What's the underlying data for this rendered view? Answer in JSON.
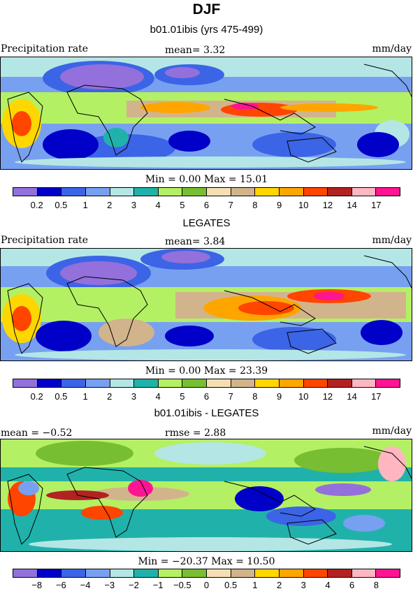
{
  "title": "DJF",
  "panels": [
    {
      "subtitle": "b01.01ibis (yrs 475-499)",
      "left_label": "Precipitation rate",
      "center_label": "mean=   3.32",
      "right_label": "mm/day",
      "stats": "Min =   0.00 Max =   15.01",
      "tick_labels": [
        "0.2",
        "0.5",
        "1",
        "2",
        "3",
        "4",
        "5",
        "6",
        "7",
        "8",
        "9",
        "10",
        "12",
        "14",
        "17"
      ],
      "palette": "abs"
    },
    {
      "subtitle": "LEGATES",
      "left_label": "Precipitation rate",
      "center_label": "mean=   3.84",
      "right_label": "mm/day",
      "stats": "Min =   0.00 Max =   23.39",
      "tick_labels": [
        "0.2",
        "0.5",
        "1",
        "2",
        "3",
        "4",
        "5",
        "6",
        "7",
        "8",
        "9",
        "10",
        "12",
        "14",
        "17"
      ],
      "palette": "abs"
    },
    {
      "subtitle": "b01.01ibis - LEGATES",
      "left_label": "mean =  −0.52",
      "center_label": "rmse =   2.88",
      "right_label": "mm/day",
      "stats": "Min = −20.37 Max =   10.50",
      "tick_labels": [
        "−8",
        "−6",
        "−4",
        "−3",
        "−2",
        "−1",
        "−0.5",
        "0",
        "0.5",
        "1",
        "2",
        "3",
        "4",
        "6",
        "8"
      ],
      "palette": "diff"
    }
  ],
  "colorbar_colors": [
    "#9370db",
    "#0000c8",
    "#3c64e6",
    "#78a0f0",
    "#b4e6e6",
    "#20b2aa",
    "#b4f064",
    "#78be32",
    "#f5deb3",
    "#d2b48c",
    "#ffd700",
    "#ffa500",
    "#ff4500",
    "#b22222",
    "#ffb6c1",
    "#ff1493"
  ]
}
